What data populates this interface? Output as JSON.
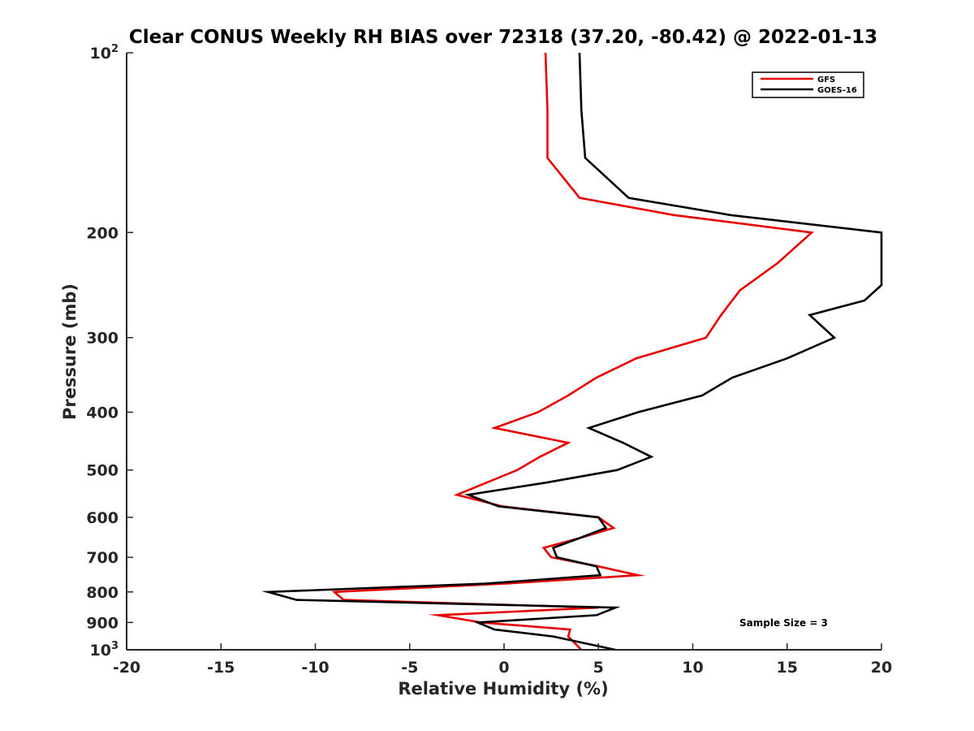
{
  "chart_data": {
    "type": "line",
    "title": "Clear CONUS Weekly RH BIAS over 72318 (37.20, -80.42) @ 2022-01-13",
    "xlabel": "Relative Humidity (%)",
    "ylabel": "Pressure (mb)",
    "xlim": [
      -20,
      20
    ],
    "ylim": [
      100,
      1000
    ],
    "yscale": "log",
    "y_reversed": true,
    "grid": false,
    "legend_position": "top-right",
    "x_ticks": [
      -20,
      -15,
      -10,
      -5,
      0,
      5,
      10,
      15,
      20
    ],
    "x_tick_labels": [
      "-20",
      "-15",
      "-10",
      "-5",
      "0",
      "5",
      "10",
      "15",
      "20"
    ],
    "y_ticks": [
      100,
      200,
      300,
      400,
      500,
      600,
      700,
      800,
      900,
      1000
    ],
    "y_tick_labels": [
      {
        "base": "10",
        "exp": "2"
      },
      {
        "base": "200",
        "exp": ""
      },
      {
        "base": "300",
        "exp": ""
      },
      {
        "base": "400",
        "exp": ""
      },
      {
        "base": "500",
        "exp": ""
      },
      {
        "base": "600",
        "exp": ""
      },
      {
        "base": "700",
        "exp": ""
      },
      {
        "base": "800",
        "exp": ""
      },
      {
        "base": "900",
        "exp": ""
      },
      {
        "base": "10",
        "exp": "3"
      }
    ],
    "series": [
      {
        "name": "GFS",
        "color": "#e60000",
        "points": [
          [
            2.2,
            100
          ],
          [
            2.3,
            125
          ],
          [
            2.3,
            150
          ],
          [
            4.0,
            175
          ],
          [
            9.0,
            187
          ],
          [
            16.3,
            200
          ],
          [
            14.5,
            225
          ],
          [
            12.5,
            250
          ],
          [
            11.5,
            275
          ],
          [
            10.7,
            300
          ],
          [
            7.0,
            325
          ],
          [
            4.9,
            350
          ],
          [
            3.4,
            375
          ],
          [
            1.8,
            400
          ],
          [
            -0.5,
            425
          ],
          [
            3.4,
            450
          ],
          [
            1.9,
            475
          ],
          [
            0.7,
            500
          ],
          [
            -2.5,
            550
          ],
          [
            -0.1,
            575
          ],
          [
            5.0,
            600
          ],
          [
            5.8,
            625
          ],
          [
            4.0,
            650
          ],
          [
            2.1,
            675
          ],
          [
            2.5,
            700
          ],
          [
            5.0,
            725
          ],
          [
            7.1,
            750
          ],
          [
            0.0,
            775
          ],
          [
            -9.0,
            800
          ],
          [
            -8.5,
            825
          ],
          [
            5.0,
            850
          ],
          [
            -3.5,
            875
          ],
          [
            -1.2,
            900
          ],
          [
            3.5,
            925
          ],
          [
            3.4,
            950
          ],
          [
            4.1,
            1000
          ]
        ]
      },
      {
        "name": "GOES-16",
        "color": "#000000",
        "points": [
          [
            4.0,
            100
          ],
          [
            4.1,
            125
          ],
          [
            4.3,
            150
          ],
          [
            6.6,
            175
          ],
          [
            12.0,
            187
          ],
          [
            20.0,
            200
          ],
          [
            20.0,
            245
          ],
          [
            19.1,
            260
          ],
          [
            16.2,
            275
          ],
          [
            17.5,
            300
          ],
          [
            15.0,
            325
          ],
          [
            12.1,
            350
          ],
          [
            10.5,
            375
          ],
          [
            7.1,
            400
          ],
          [
            4.5,
            425
          ],
          [
            6.3,
            450
          ],
          [
            7.8,
            475
          ],
          [
            6.0,
            500
          ],
          [
            2.2,
            525
          ],
          [
            -1.9,
            550
          ],
          [
            -0.3,
            575
          ],
          [
            5.0,
            600
          ],
          [
            5.4,
            625
          ],
          [
            4.0,
            650
          ],
          [
            2.6,
            675
          ],
          [
            2.8,
            700
          ],
          [
            4.9,
            725
          ],
          [
            5.1,
            750
          ],
          [
            -1.0,
            775
          ],
          [
            -12.5,
            800
          ],
          [
            -11.0,
            825
          ],
          [
            5.9,
            850
          ],
          [
            4.9,
            875
          ],
          [
            -1.4,
            900
          ],
          [
            -0.5,
            925
          ],
          [
            2.6,
            950
          ],
          [
            5.9,
            1000
          ]
        ]
      }
    ],
    "annotations": [
      {
        "text": "Sample Size = 3"
      }
    ]
  }
}
